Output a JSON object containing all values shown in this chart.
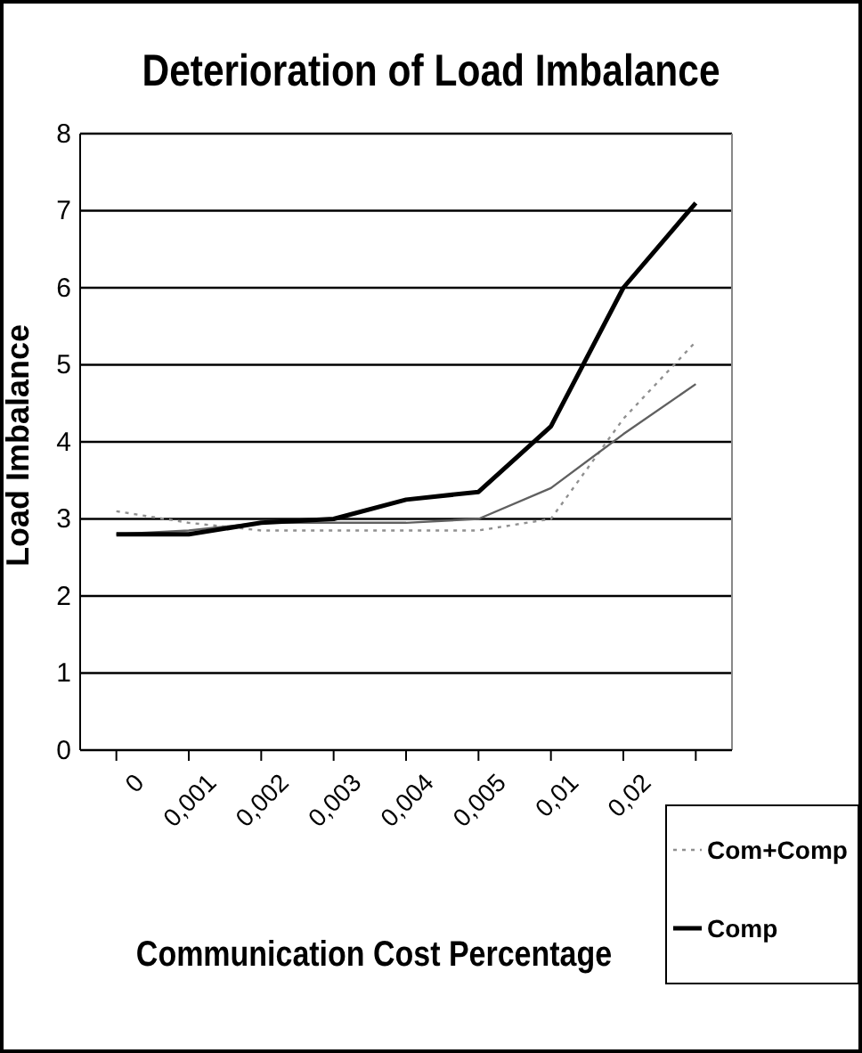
{
  "chart_data": {
    "type": "line",
    "title": "Deterioration of Load Imbalance",
    "xlabel": "Communication Cost Percentage",
    "ylabel": "Load Imbalance",
    "categories": [
      "0",
      "0,001",
      "0,002",
      "0,003",
      "0,004",
      "0,005",
      "0,01",
      "0,02",
      null
    ],
    "series": [
      {
        "name": "Com+Comp",
        "color": "#909090",
        "line_style": "dotted",
        "values": [
          3.1,
          2.95,
          2.85,
          2.85,
          2.85,
          2.85,
          3.0,
          4.3,
          5.3
        ]
      },
      {
        "color": "#606060",
        "line_style": "solid",
        "values": [
          2.8,
          2.85,
          2.95,
          2.95,
          2.95,
          3.0,
          3.4,
          4.1,
          4.75
        ]
      },
      {
        "name": "Comp",
        "color": "#000000",
        "line_style": "solid",
        "values": [
          2.8,
          2.8,
          2.95,
          3.0,
          3.25,
          3.35,
          4.2,
          6.0,
          7.1
        ]
      }
    ],
    "ylim": [
      0,
      8
    ],
    "yticks": [
      0,
      1,
      2,
      3,
      4,
      5,
      6,
      7,
      8
    ],
    "grid": "y",
    "legend": "bottom right",
    "marker": "none"
  }
}
